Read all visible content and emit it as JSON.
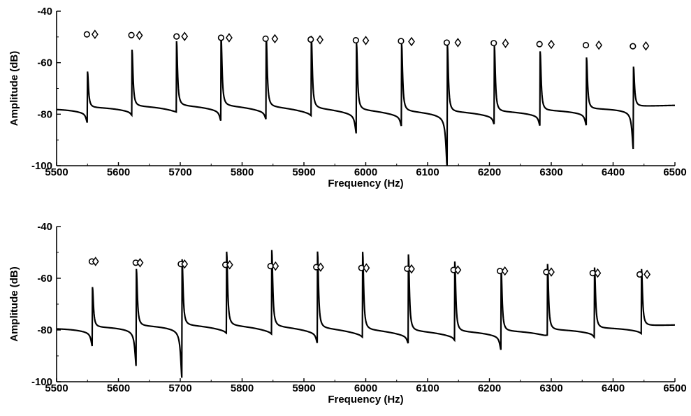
{
  "chart_data": [
    {
      "type": "line",
      "title": "",
      "xlabel": "Frequency (Hz)",
      "ylabel": "Amplitude (dB)",
      "xlim": [
        5500,
        6500
      ],
      "ylim": [
        -100,
        -40
      ],
      "xticks": [
        "5500",
        "5600",
        "5700",
        "5800",
        "5900",
        "6000",
        "6100",
        "6200",
        "6300",
        "6400",
        "6500"
      ],
      "yticks": [
        "-40",
        "-60",
        "-80",
        "-100"
      ],
      "grid": false,
      "legend": "none",
      "baseline": -77.5,
      "resonances": [
        {
          "f": 5550,
          "peak": -63.5,
          "dip": -81
        },
        {
          "f": 5622,
          "peak": -55.5,
          "dip": -78.5
        },
        {
          "f": 5694,
          "peak": -52.5,
          "dip": -77.5
        },
        {
          "f": 5766,
          "peak": -50.5,
          "dip": -81
        },
        {
          "f": 5839,
          "peak": -50,
          "dip": -80
        },
        {
          "f": 5912,
          "peak": -49.5,
          "dip": -78
        },
        {
          "f": 5985,
          "peak": -51.5,
          "dip": -84.5
        },
        {
          "f": 6058,
          "peak": -51.5,
          "dip": -81
        },
        {
          "f": 6132,
          "peak": -51.5,
          "dip": -97.5
        },
        {
          "f": 6208,
          "peak": -52,
          "dip": -80
        },
        {
          "f": 6282,
          "peak": -54.5,
          "dip": -81
        },
        {
          "f": 6357,
          "peak": -57.5,
          "dip": -81.5
        },
        {
          "f": 6433,
          "peak": -62,
          "dip": -92
        }
      ],
      "series": [
        {
          "marker": "circle",
          "x": [
            5549,
            5621,
            5694,
            5766,
            5838,
            5911,
            5984,
            6057,
            6131,
            6207,
            6281,
            6356,
            6432
          ],
          "y": [
            -49,
            -49.3,
            -49.8,
            -50.3,
            -50.7,
            -51,
            -51.3,
            -51.6,
            -52.2,
            -52.4,
            -52.8,
            -53.2,
            -53.6
          ]
        },
        {
          "marker": "diamond",
          "x": [
            5562,
            5634,
            5707,
            5779,
            5853,
            5926,
            6000,
            6074,
            6149,
            6226,
            6300,
            6377,
            6453
          ],
          "y": [
            -49,
            -49.4,
            -49.8,
            -50.3,
            -50.7,
            -51.1,
            -51.4,
            -51.8,
            -52.2,
            -52.5,
            -52.9,
            -53.2,
            -53.5
          ]
        }
      ]
    },
    {
      "type": "line",
      "title": "",
      "xlabel": "Frequency (Hz)",
      "ylabel": "Amplitude (dB)",
      "xlim": [
        5500,
        6500
      ],
      "ylim": [
        -100,
        -40
      ],
      "xticks": [
        "5500",
        "5600",
        "5700",
        "5800",
        "5900",
        "6000",
        "6100",
        "6200",
        "6300",
        "6400",
        "6500"
      ],
      "yticks": [
        "-40",
        "-60",
        "-80",
        "-100"
      ],
      "grid": false,
      "legend": "none",
      "baseline": -79,
      "resonances": [
        {
          "f": 5558,
          "peak": -63.5,
          "dip": -84
        },
        {
          "f": 5629,
          "peak": -57,
          "dip": -92.5
        },
        {
          "f": 5703,
          "peak": -53.5,
          "dip": -97.5
        },
        {
          "f": 5775,
          "peak": -50.5,
          "dip": -79.5
        },
        {
          "f": 5848,
          "peak": -49.5,
          "dip": -79.5
        },
        {
          "f": 5922,
          "peak": -49.5,
          "dip": -82.5
        },
        {
          "f": 5995,
          "peak": -49,
          "dip": -79.5
        },
        {
          "f": 6069,
          "peak": -49.5,
          "dip": -81.5
        },
        {
          "f": 6144,
          "peak": -52,
          "dip": -80
        },
        {
          "f": 6219,
          "peak": -55.5,
          "dip": -84
        },
        {
          "f": 6294,
          "peak": -53.5,
          "dip": -78.5
        },
        {
          "f": 6370,
          "peak": -55.5,
          "dip": -80
        },
        {
          "f": 6446,
          "peak": -57,
          "dip": -79.5
        }
      ],
      "series": [
        {
          "marker": "circle",
          "x": [
            5557,
            5628,
            5701,
            5773,
            5846,
            5920,
            5993,
            6067,
            6142,
            6217,
            6292,
            6367,
            6443
          ],
          "y": [
            -53.5,
            -54,
            -54.5,
            -54.8,
            -55.3,
            -55.7,
            -56,
            -56.3,
            -56.8,
            -57.2,
            -57.6,
            -58,
            -58.5
          ]
        },
        {
          "marker": "diamond",
          "x": [
            5563,
            5635,
            5707,
            5780,
            5854,
            5927,
            6001,
            6074,
            6149,
            6225,
            6300,
            6375,
            6455
          ],
          "y": [
            -53.5,
            -54,
            -54.5,
            -54.8,
            -55.3,
            -55.7,
            -56,
            -56.4,
            -56.8,
            -57.2,
            -57.6,
            -58,
            -58.5
          ]
        }
      ]
    }
  ]
}
